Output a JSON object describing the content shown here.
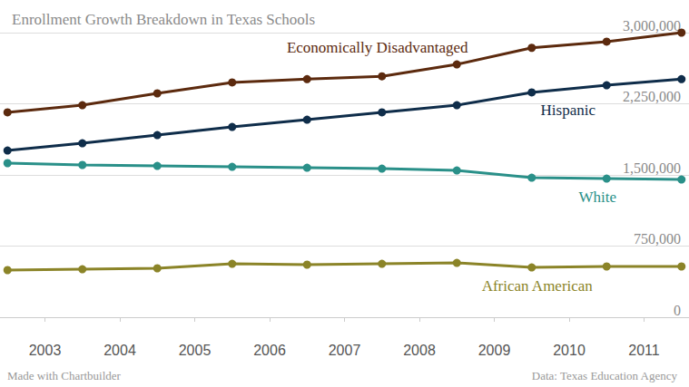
{
  "chart_data": {
    "type": "line",
    "title": "Enrollment Growth Breakdown in Texas Schools",
    "annotations": [
      "Made with Chartbuilder",
      "Data: Texas Education Agency"
    ],
    "x": [
      2002.5,
      2003.5,
      2004.5,
      2005.5,
      2006.5,
      2007.5,
      2008.5,
      2009.5,
      2010.5,
      2011.5
    ],
    "xlim": [
      2002.4,
      2011.6
    ],
    "xticks": [
      2003,
      2004,
      2005,
      2006,
      2007,
      2008,
      2009,
      2010,
      2011
    ],
    "ylim": [
      0,
      3000000
    ],
    "yticks": [
      0,
      {
        "value": 750000,
        "label": "750,000"
      },
      {
        "value": 1500000,
        "label": "1,500,000"
      },
      {
        "value": 2250000,
        "label": "2,250,000"
      },
      {
        "value": 3000000,
        "label": "3,000,000"
      }
    ],
    "grid": true,
    "marker": "circle",
    "series": [
      {
        "name": "Economically Disadvantaged",
        "color": "#5c2a0e",
        "values": [
          2160000,
          2235000,
          2360000,
          2475000,
          2510000,
          2540000,
          2665000,
          2840000,
          2905000,
          3000000
        ]
      },
      {
        "name": "Hispanic",
        "color": "#0f2d4a",
        "values": [
          1757000,
          1834000,
          1920000,
          2006000,
          2082000,
          2160000,
          2235000,
          2370000,
          2445000,
          2510000
        ]
      },
      {
        "name": "White",
        "color": "#2a9089",
        "values": [
          1624000,
          1605000,
          1595000,
          1585000,
          1576000,
          1566000,
          1547000,
          1471000,
          1461000,
          1452000
        ]
      },
      {
        "name": "African American",
        "color": "#8b8428",
        "values": [
          497000,
          506000,
          516000,
          563000,
          554000,
          563000,
          573000,
          525000,
          535000,
          535000
        ]
      }
    ]
  }
}
